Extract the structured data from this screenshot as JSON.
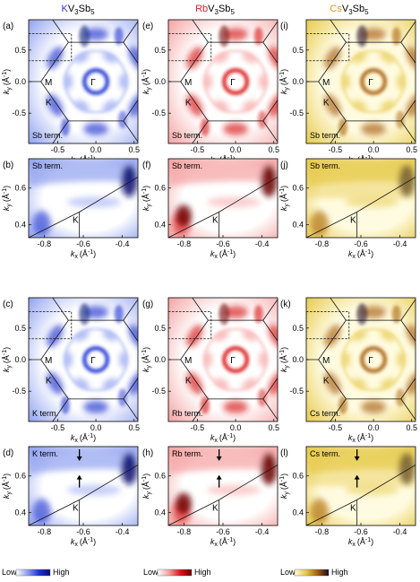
{
  "columns": [
    {
      "title_prefix": "K",
      "title_suffix": "V",
      "title_sub3": "3",
      "title_sb": "Sb",
      "title_sub5": "5",
      "element_color": "#2a3bd6",
      "cmap": [
        "#ffffff",
        "#8fa0f0",
        "#2034d0",
        "#0a0f70"
      ]
    },
    {
      "title_prefix": "Rb",
      "title_suffix": "V",
      "title_sub3": "3",
      "title_sb": "Sb",
      "title_sub5": "5",
      "element_color": "#e0202a",
      "cmap": [
        "#ffffff",
        "#f5a0a0",
        "#d81818",
        "#6a0000"
      ]
    },
    {
      "title_prefix": "Cs",
      "title_suffix": "V",
      "title_sub3": "3",
      "title_sb": "Sb",
      "title_sub5": "5",
      "element_color": "#e8901a",
      "cmap": [
        "#fffbe0",
        "#e6c94a",
        "#a8600a",
        "#1a0820"
      ]
    }
  ],
  "panels": [
    {
      "letter": "(a)",
      "term": "Sb term.",
      "type": "fs",
      "col": 0
    },
    {
      "letter": "(e)",
      "term": "Sb term.",
      "type": "fs",
      "col": 1
    },
    {
      "letter": "(i)",
      "term": "Sb term.",
      "type": "fs",
      "col": 2
    },
    {
      "letter": "(b)",
      "term": "Sb term.",
      "type": "zoom",
      "col": 0
    },
    {
      "letter": "(f)",
      "term": "Sb term.",
      "type": "zoom",
      "col": 1
    },
    {
      "letter": "(j)",
      "term": "Sb term.",
      "type": "zoom",
      "col": 2
    },
    {
      "letter": "(c)",
      "term": "K term.",
      "type": "fs",
      "col": 0
    },
    {
      "letter": "(g)",
      "term": "Rb term.",
      "type": "fs",
      "col": 1
    },
    {
      "letter": "(k)",
      "term": "Cs term.",
      "type": "fs",
      "col": 2
    },
    {
      "letter": "(d)",
      "term": "K term.",
      "type": "zoom",
      "col": 0,
      "arrows": true
    },
    {
      "letter": "(h)",
      "term": "Rb term.",
      "type": "zoom",
      "col": 1,
      "arrows": true
    },
    {
      "letter": "(l)",
      "term": "Cs term.",
      "type": "zoom",
      "col": 2,
      "arrows": true
    }
  ],
  "fs_axes": {
    "xlabel_main": "k",
    "xlabel_sub": "x",
    "xlabel_unit": "(Å",
    "xlabel_exp": "-1",
    "xlabel_close": ")",
    "ylabel_main": "k",
    "ylabel_sub": "y",
    "ylabel_unit": "(Å",
    "ylabel_exp": "-1",
    "ylabel_close": ")",
    "xticks": [
      "-0.5",
      "0.0",
      "0.5"
    ],
    "xtick_values": [
      -0.5,
      0.0,
      0.5
    ],
    "yticks": [
      "0.5",
      "0.0",
      "-0.5"
    ],
    "ytick_values": [
      0.5,
      0.0,
      -0.5
    ],
    "xlim": [
      -0.88,
      0.55
    ],
    "ylim": [
      -0.98,
      0.98
    ],
    "point_gamma": "Γ",
    "point_M": "M",
    "point_K": "K"
  },
  "zoom_axes": {
    "xticks": [
      "-0.8",
      "-0.6",
      "-0.4"
    ],
    "xtick_values": [
      -0.8,
      -0.6,
      -0.4
    ],
    "yticks": [
      "0.6",
      "0.4"
    ],
    "ytick_values": [
      0.6,
      0.4
    ],
    "xlim": [
      -0.88,
      -0.32
    ],
    "ylim": [
      0.33,
      0.76
    ],
    "point_K": "K"
  },
  "colorbar": {
    "low": "Low",
    "high": "High"
  }
}
